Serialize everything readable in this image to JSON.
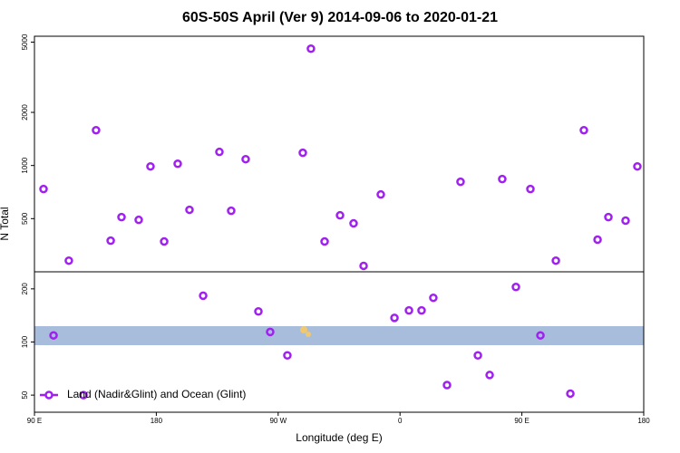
{
  "chart_data": {
    "type": "scatter",
    "title": "60S-50S April (Ver 9)   2014-09-06 to 2020-01-21",
    "x_label": "Longitude (deg E)",
    "y_label": "N Total",
    "log_y": true,
    "legend_position": "bottom-left",
    "xlim": [
      90,
      540
    ],
    "xticks": [
      {
        "value": 90,
        "label": "90 E"
      },
      {
        "value": 180,
        "label": "180"
      },
      {
        "value": 270,
        "label": "90 W"
      },
      {
        "value": 360,
        "label": "0"
      },
      {
        "value": 450,
        "label": "90 E"
      },
      {
        "value": 540,
        "label": "180"
      }
    ],
    "ylim": [
      40,
      5400
    ],
    "yticks": [
      50,
      100,
      200,
      500,
      1000,
      2000,
      5000
    ],
    "series": [
      {
        "name": "Land (Nadir&Glint) and Ocean (Glint)",
        "color": "#a020f0",
        "x": [
          96.7,
          104.1,
          115.4,
          126.2,
          135.5,
          146.3,
          154.3,
          167,
          175.7,
          185.8,
          195.8,
          204.5,
          214.6,
          226.6,
          235.3,
          246,
          255.4,
          264.1,
          276.8,
          288.2,
          294.2,
          304.3,
          315.7,
          325.7,
          333.1,
          345.8,
          355.9,
          366.6,
          375.9,
          384.6,
          394.7,
          404.7,
          417.5,
          426.2,
          435.5,
          445.6,
          456.3,
          463.7,
          475.1,
          485.8,
          495.8,
          505.9,
          513.9,
          526.6,
          535.3
        ],
        "values": [
          736,
          109,
          289,
          50,
          1585,
          375,
          510,
          492,
          988,
          371,
          1023,
          561,
          183,
          1194,
          554,
          1086,
          149,
          114,
          84,
          1180,
          4590,
          371,
          522,
          470,
          270,
          685,
          137,
          151,
          151,
          178,
          57,
          809,
          84,
          65,
          838,
          205,
          736,
          109,
          289,
          51,
          1585,
          380,
          510,
          487,
          988
        ]
      }
    ]
  }
}
